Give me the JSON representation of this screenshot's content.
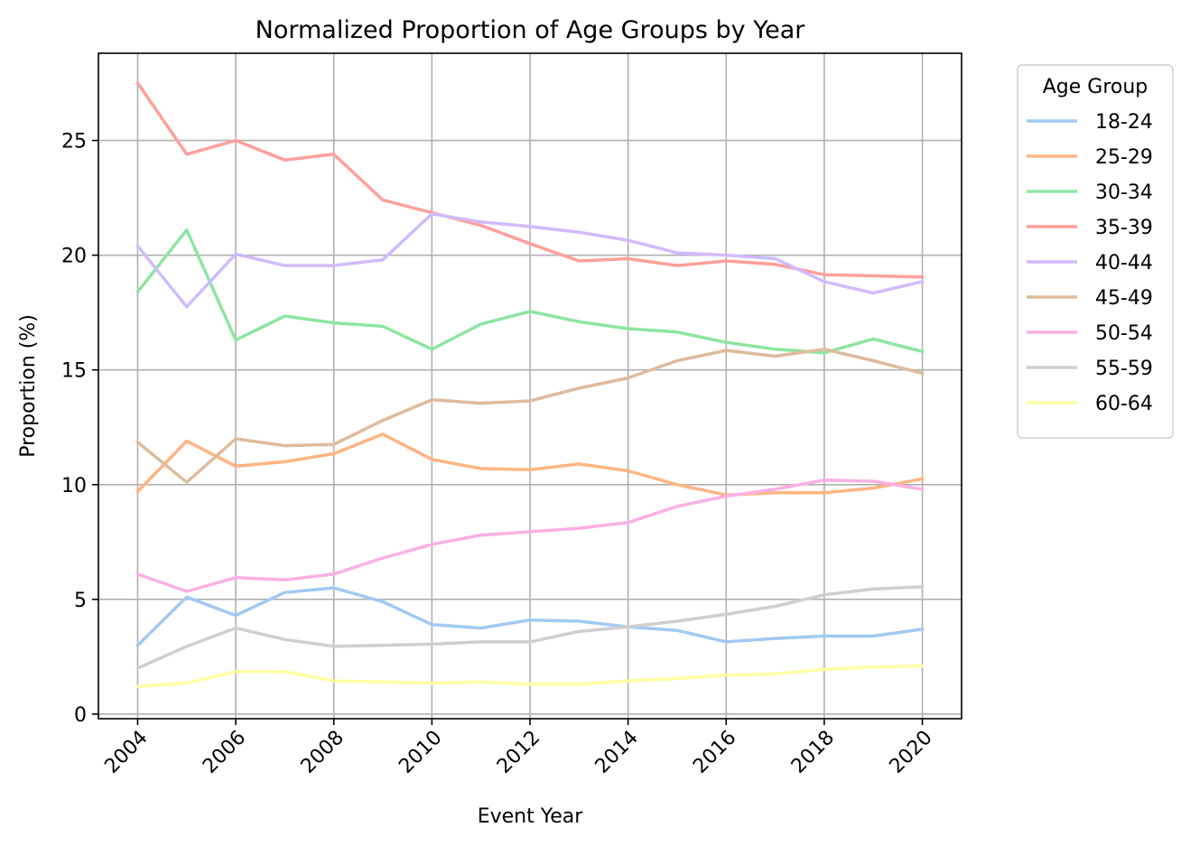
{
  "chart_data": {
    "type": "line",
    "title": "Normalized Proportion of Age Groups by Year",
    "xlabel": "Event Year",
    "ylabel": "Proportion (%)",
    "xlim": [
      2003.2,
      2020.8
    ],
    "ylim": [
      -0.2,
      28.8
    ],
    "xticks": [
      2004,
      2006,
      2008,
      2010,
      2012,
      2014,
      2016,
      2018,
      2020
    ],
    "yticks": [
      0,
      5,
      10,
      15,
      20,
      25
    ],
    "grid": true,
    "legend": {
      "title": "Age Group",
      "position": "outside-right-top"
    },
    "x": [
      2004,
      2005,
      2006,
      2007,
      2008,
      2009,
      2010,
      2011,
      2012,
      2013,
      2014,
      2015,
      2016,
      2017,
      2018,
      2019,
      2020
    ],
    "series": [
      {
        "name": "18-24",
        "color": "#a1c9f4",
        "values": [
          3.0,
          5.1,
          4.3,
          5.3,
          5.5,
          4.9,
          3.9,
          3.75,
          4.1,
          4.05,
          3.8,
          3.65,
          3.15,
          3.3,
          3.4,
          3.4,
          3.7
        ]
      },
      {
        "name": "25-29",
        "color": "#ffb482",
        "values": [
          9.7,
          11.9,
          10.8,
          11.0,
          11.35,
          12.2,
          11.1,
          10.7,
          10.65,
          10.9,
          10.6,
          10.0,
          9.55,
          9.65,
          9.65,
          9.85,
          10.25
        ]
      },
      {
        "name": "30-34",
        "color": "#8de5a1",
        "values": [
          18.4,
          21.1,
          16.3,
          17.35,
          17.05,
          16.9,
          15.9,
          17.0,
          17.55,
          17.1,
          16.8,
          16.65,
          16.2,
          15.9,
          15.75,
          16.35,
          15.8
        ]
      },
      {
        "name": "35-39",
        "color": "#ff9f9b",
        "values": [
          27.5,
          24.4,
          25.0,
          24.15,
          24.4,
          22.4,
          21.85,
          21.3,
          20.5,
          19.75,
          19.85,
          19.55,
          19.75,
          19.6,
          19.15,
          19.1,
          19.05
        ]
      },
      {
        "name": "40-44",
        "color": "#d0bbff",
        "values": [
          20.4,
          17.75,
          20.05,
          19.55,
          19.55,
          19.8,
          21.8,
          21.45,
          21.25,
          21.0,
          20.65,
          20.1,
          20.0,
          19.85,
          18.85,
          18.35,
          18.85
        ]
      },
      {
        "name": "45-49",
        "color": "#debb9b",
        "values": [
          11.85,
          10.1,
          12.0,
          11.7,
          11.75,
          12.8,
          13.7,
          13.55,
          13.65,
          14.2,
          14.65,
          15.4,
          15.85,
          15.6,
          15.9,
          15.4,
          14.85
        ]
      },
      {
        "name": "50-54",
        "color": "#fab0e4",
        "values": [
          6.1,
          5.35,
          5.95,
          5.85,
          6.1,
          6.8,
          7.4,
          7.8,
          7.95,
          8.1,
          8.35,
          9.05,
          9.5,
          9.8,
          10.2,
          10.15,
          9.8
        ]
      },
      {
        "name": "55-59",
        "color": "#cfcfcf",
        "values": [
          2.0,
          2.95,
          3.75,
          3.25,
          2.95,
          3.0,
          3.05,
          3.15,
          3.15,
          3.6,
          3.8,
          4.05,
          4.35,
          4.7,
          5.2,
          5.45,
          5.55
        ]
      },
      {
        "name": "60-64",
        "color": "#fffea3",
        "values": [
          1.2,
          1.35,
          1.85,
          1.85,
          1.45,
          1.4,
          1.35,
          1.4,
          1.3,
          1.3,
          1.45,
          1.55,
          1.7,
          1.75,
          1.95,
          2.05,
          2.1
        ]
      }
    ]
  }
}
